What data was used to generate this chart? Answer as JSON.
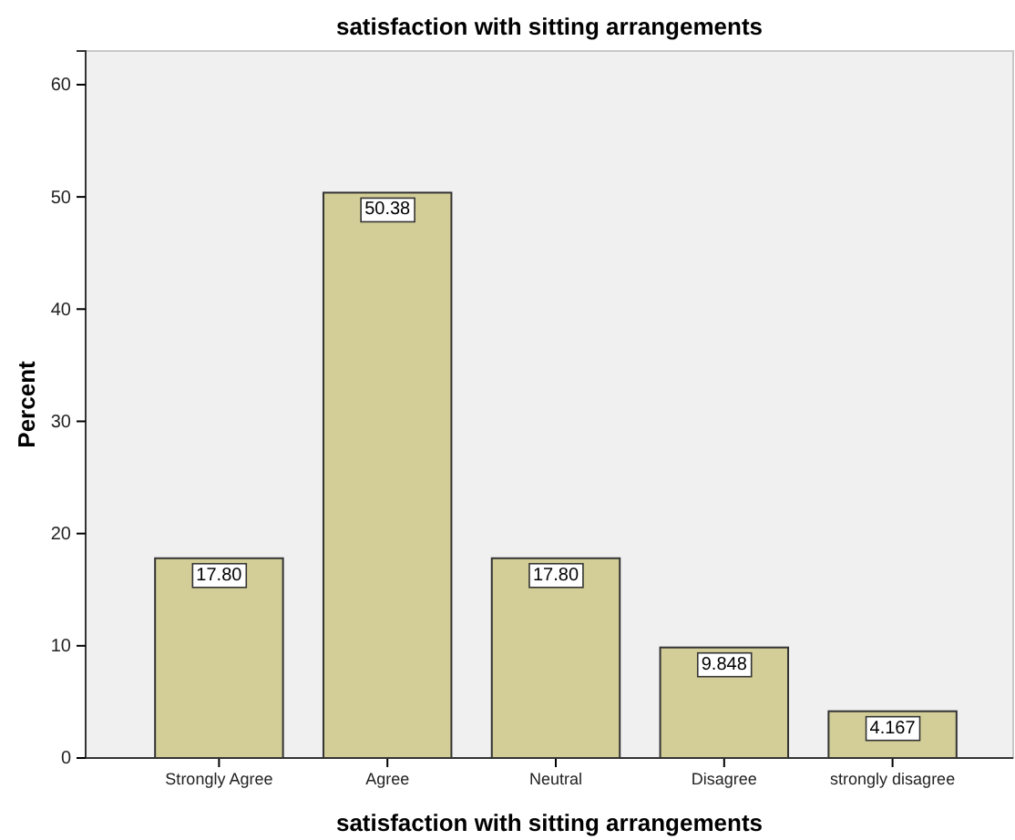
{
  "chart_data": {
    "type": "bar",
    "title": "satisfaction with sitting arrangements",
    "xlabel": "satisfaction with sitting arrangements",
    "ylabel": "Percent",
    "categories": [
      "Strongly Agree",
      "Agree",
      "Neutral",
      "Disagree",
      "strongly disagree"
    ],
    "values": [
      17.8,
      50.38,
      17.8,
      9.848,
      4.167
    ],
    "value_labels": [
      "17.80",
      "50.38",
      "17.80",
      "9.848",
      "4.167"
    ],
    "color": "#d3ce97",
    "ylim": [
      0,
      63
    ],
    "yticks": [
      0,
      10,
      20,
      30,
      40,
      50,
      60
    ],
    "grid": false
  }
}
